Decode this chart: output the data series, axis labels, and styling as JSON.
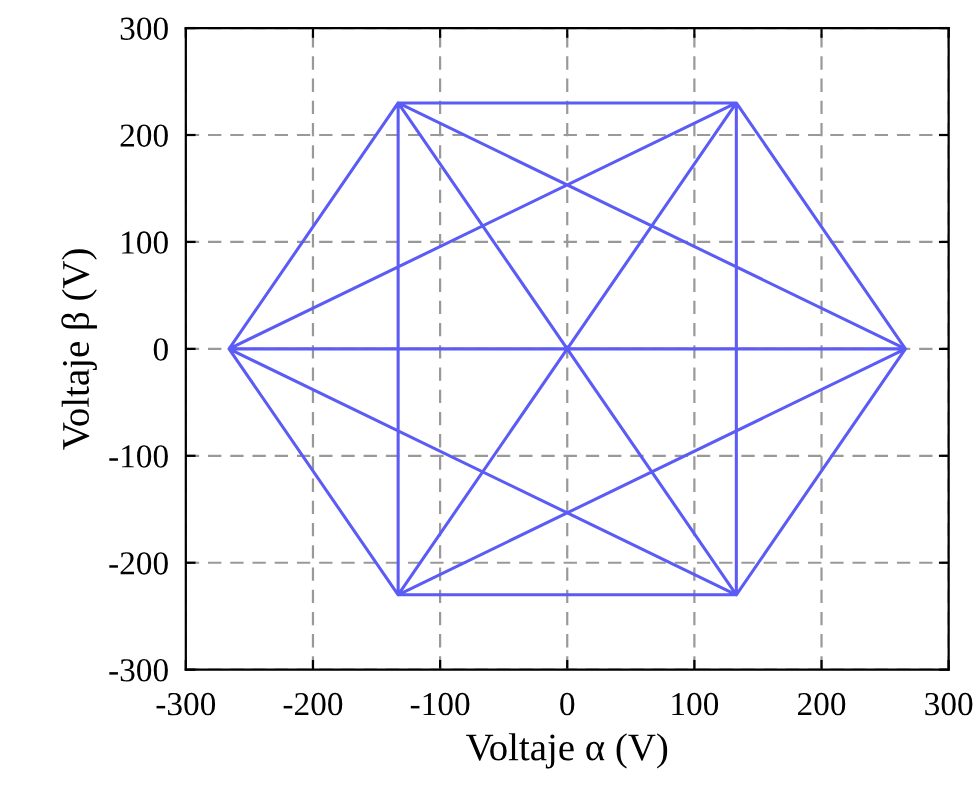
{
  "chart_data": {
    "type": "line",
    "xlabel": "Voltaje α (V)",
    "ylabel": "Voltaje β (V)",
    "series": [
      {
        "color": "#5b5bf5",
        "x": [
          -133,
          133,
          266,
          133,
          -133,
          -266,
          -133,
          266,
          -133,
          -133,
          133,
          -266,
          133,
          133,
          266,
          -266,
          -133,
          133
        ],
        "values": [
          -230,
          -230,
          0,
          230,
          230,
          0,
          -230,
          0,
          230,
          -230,
          230,
          0,
          -230,
          230,
          0,
          0,
          230,
          -230
        ]
      }
    ],
    "xlim": [
      -300,
      300
    ],
    "ylim": [
      -300,
      300
    ],
    "xticks": [
      -300,
      -200,
      -100,
      0,
      100,
      200,
      300
    ],
    "yticks": [
      -300,
      -200,
      -100,
      0,
      100,
      200,
      300
    ],
    "grid": true,
    "marker": "none",
    "line_style": "solid"
  }
}
